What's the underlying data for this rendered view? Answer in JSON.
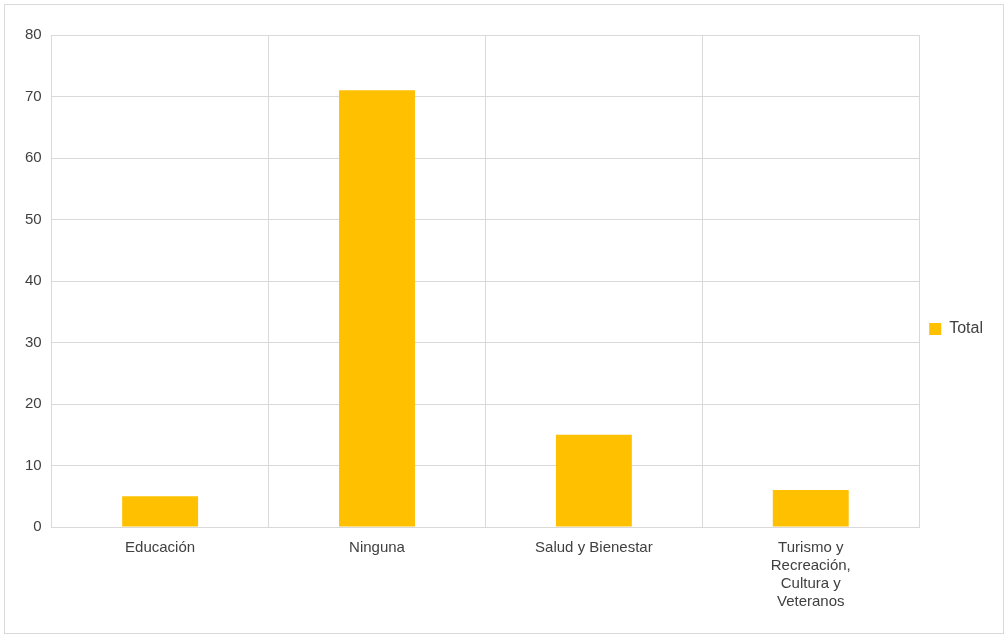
{
  "chart_data": {
    "type": "bar",
    "categories": [
      "Educación",
      "Ninguna",
      "Salud y Bienestar",
      "Turismo y Recreación, Cultura y Veteranos"
    ],
    "series": [
      {
        "name": "Total",
        "color": "#ffc000",
        "values": [
          5,
          71,
          15,
          6
        ]
      }
    ],
    "ylim": [
      0,
      80
    ],
    "yticks": [
      0,
      10,
      20,
      30,
      40,
      50,
      60,
      70,
      80
    ],
    "grid": true,
    "legend": "right"
  }
}
